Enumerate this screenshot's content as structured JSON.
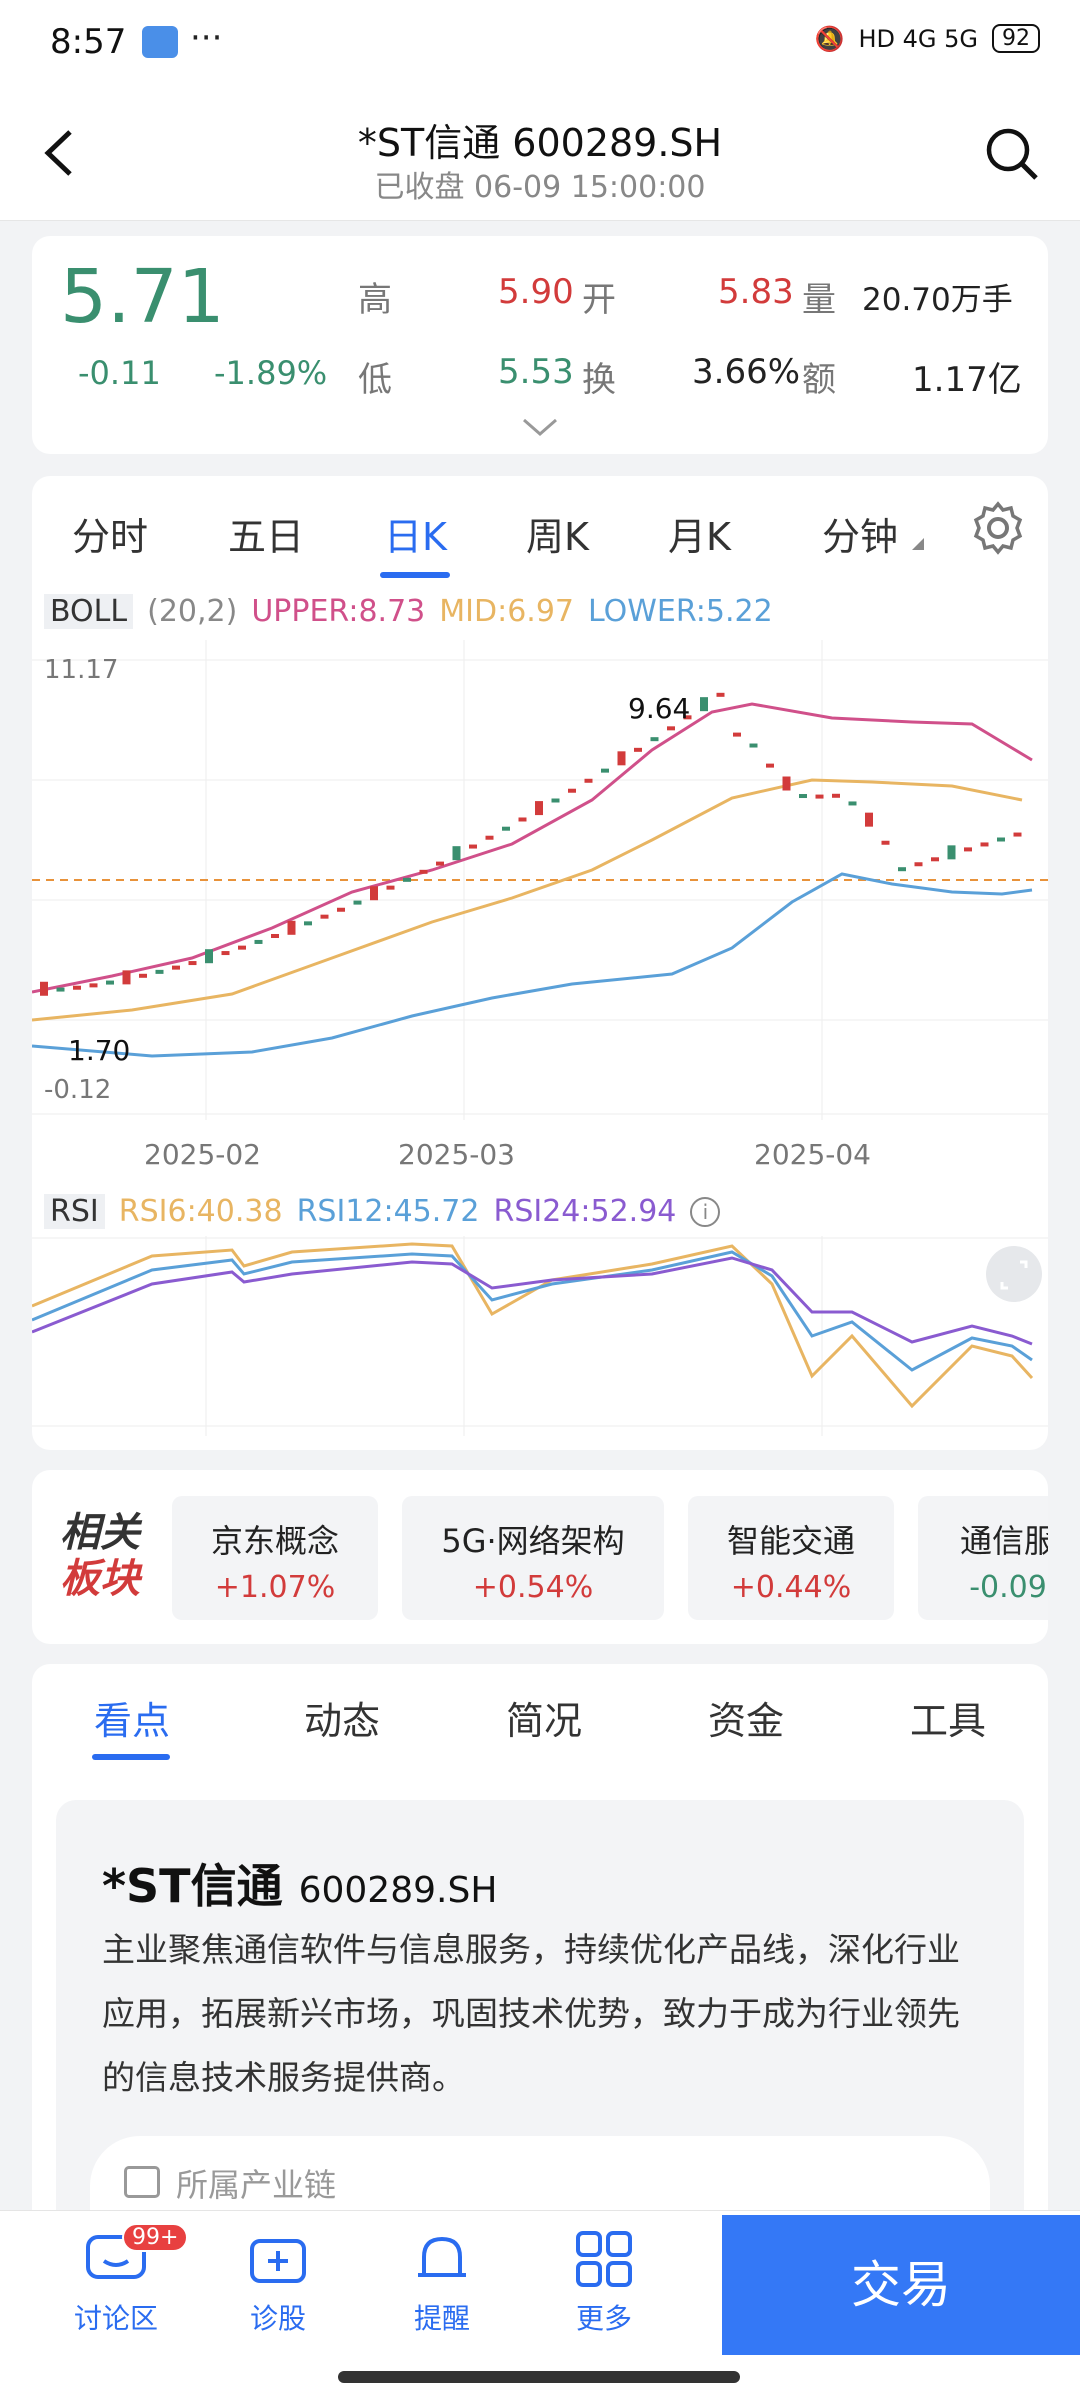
{
  "status": {
    "time": "8:57",
    "network": "HD 4G 5G",
    "battery": "92"
  },
  "header": {
    "title": "*ST信通 600289.SH",
    "subtitle": "已收盘 06-09 15:00:00"
  },
  "quote": {
    "price": "5.71",
    "change": "-0.11",
    "change_pct": "-1.89%",
    "high_label": "高",
    "high": "5.90",
    "open_label": "开",
    "open": "5.83",
    "vol_label": "量",
    "vol": "20.70万手",
    "low_label": "低",
    "low": "5.53",
    "turn_label": "换",
    "turn": "3.66%",
    "amt_label": "额",
    "amt": "1.17亿"
  },
  "tabs": [
    "分时",
    "五日",
    "日K",
    "周K",
    "月K",
    "分钟"
  ],
  "boll": {
    "name": "BOLL",
    "params": "(20,2)",
    "upper": "UPPER:8.73",
    "mid": "MID:6.97",
    "lower": "LOWER:5.22"
  },
  "kline": {
    "ymax": "11.17",
    "ymin": "-0.12",
    "high_mark": "9.64",
    "low_mark": "1.70",
    "dates": [
      "2025-02",
      "2025-03",
      "2025-04"
    ]
  },
  "rsi": {
    "name": "RSI",
    "rsi6": "RSI6:40.38",
    "rsi12": "RSI12:45.72",
    "rsi24": "RSI24:52.94"
  },
  "colors": {
    "up": "#d23b3b",
    "down": "#3a8f6f",
    "upper": "#d0508a",
    "mid": "#e8b562",
    "lower": "#5aa0d8",
    "rsi24": "#8a5bd0",
    "accent": "#2a6cf0"
  },
  "sectors": {
    "title_top": "相关",
    "title_bot": "板块",
    "items": [
      {
        "name": "京东概念",
        "pct": "+1.07%"
      },
      {
        "name": "5G·网络架构",
        "pct": "+0.54%"
      },
      {
        "name": "智能交通",
        "pct": "+0.44%"
      },
      {
        "name": "通信服",
        "pct": "-0.09"
      }
    ]
  },
  "content_tabs": [
    "看点",
    "动态",
    "简况",
    "资金",
    "工具"
  ],
  "profile": {
    "name": "*ST信通",
    "code": "600289.SH",
    "desc": "主业聚焦通信软件与信息服务，持续优化产品线，深化行业应用，拓展新兴市场，巩固技术优势，致力于成为行业领先的信息技术服务提供商。",
    "chain": "所属产业链"
  },
  "bottom": {
    "forum": "讨论区",
    "badge": "99+",
    "diagnose": "诊股",
    "remind": "提醒",
    "more": "更多",
    "trade": "交易"
  }
}
